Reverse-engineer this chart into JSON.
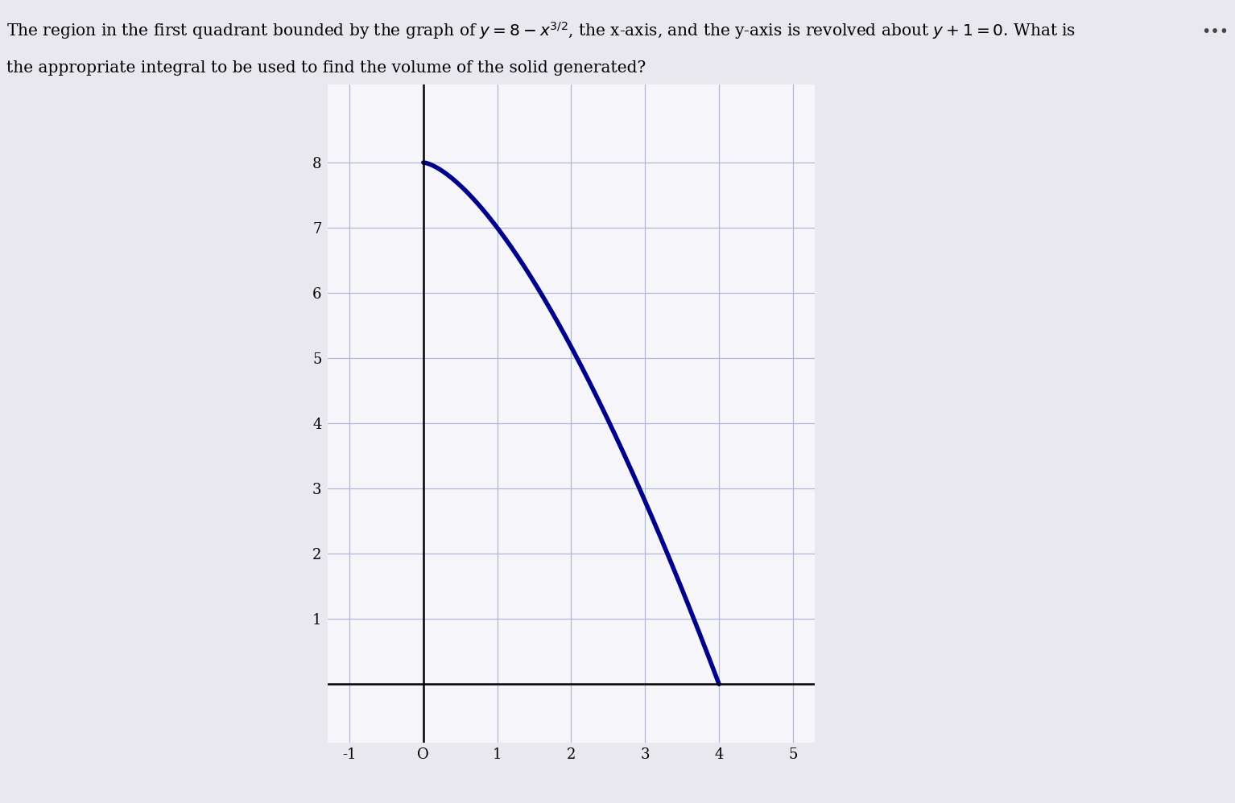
{
  "curve_color": "#00008B",
  "curve_linewidth": 4.0,
  "grid_color": "#b0b8d8",
  "axis_color": "#000000",
  "background_color": "#e8e8ee",
  "plot_bg_color": "#f5f5fa",
  "xlim": [
    -1.3,
    5.3
  ],
  "ylim": [
    -0.9,
    9.2
  ],
  "xticks": [
    -1,
    0,
    1,
    2,
    3,
    4,
    5
  ],
  "yticks": [
    1,
    2,
    3,
    4,
    5,
    6,
    7,
    8
  ],
  "x_start": 0,
  "x_end": 4,
  "font_size_title": 14.5,
  "font_size_ticks": 13
}
